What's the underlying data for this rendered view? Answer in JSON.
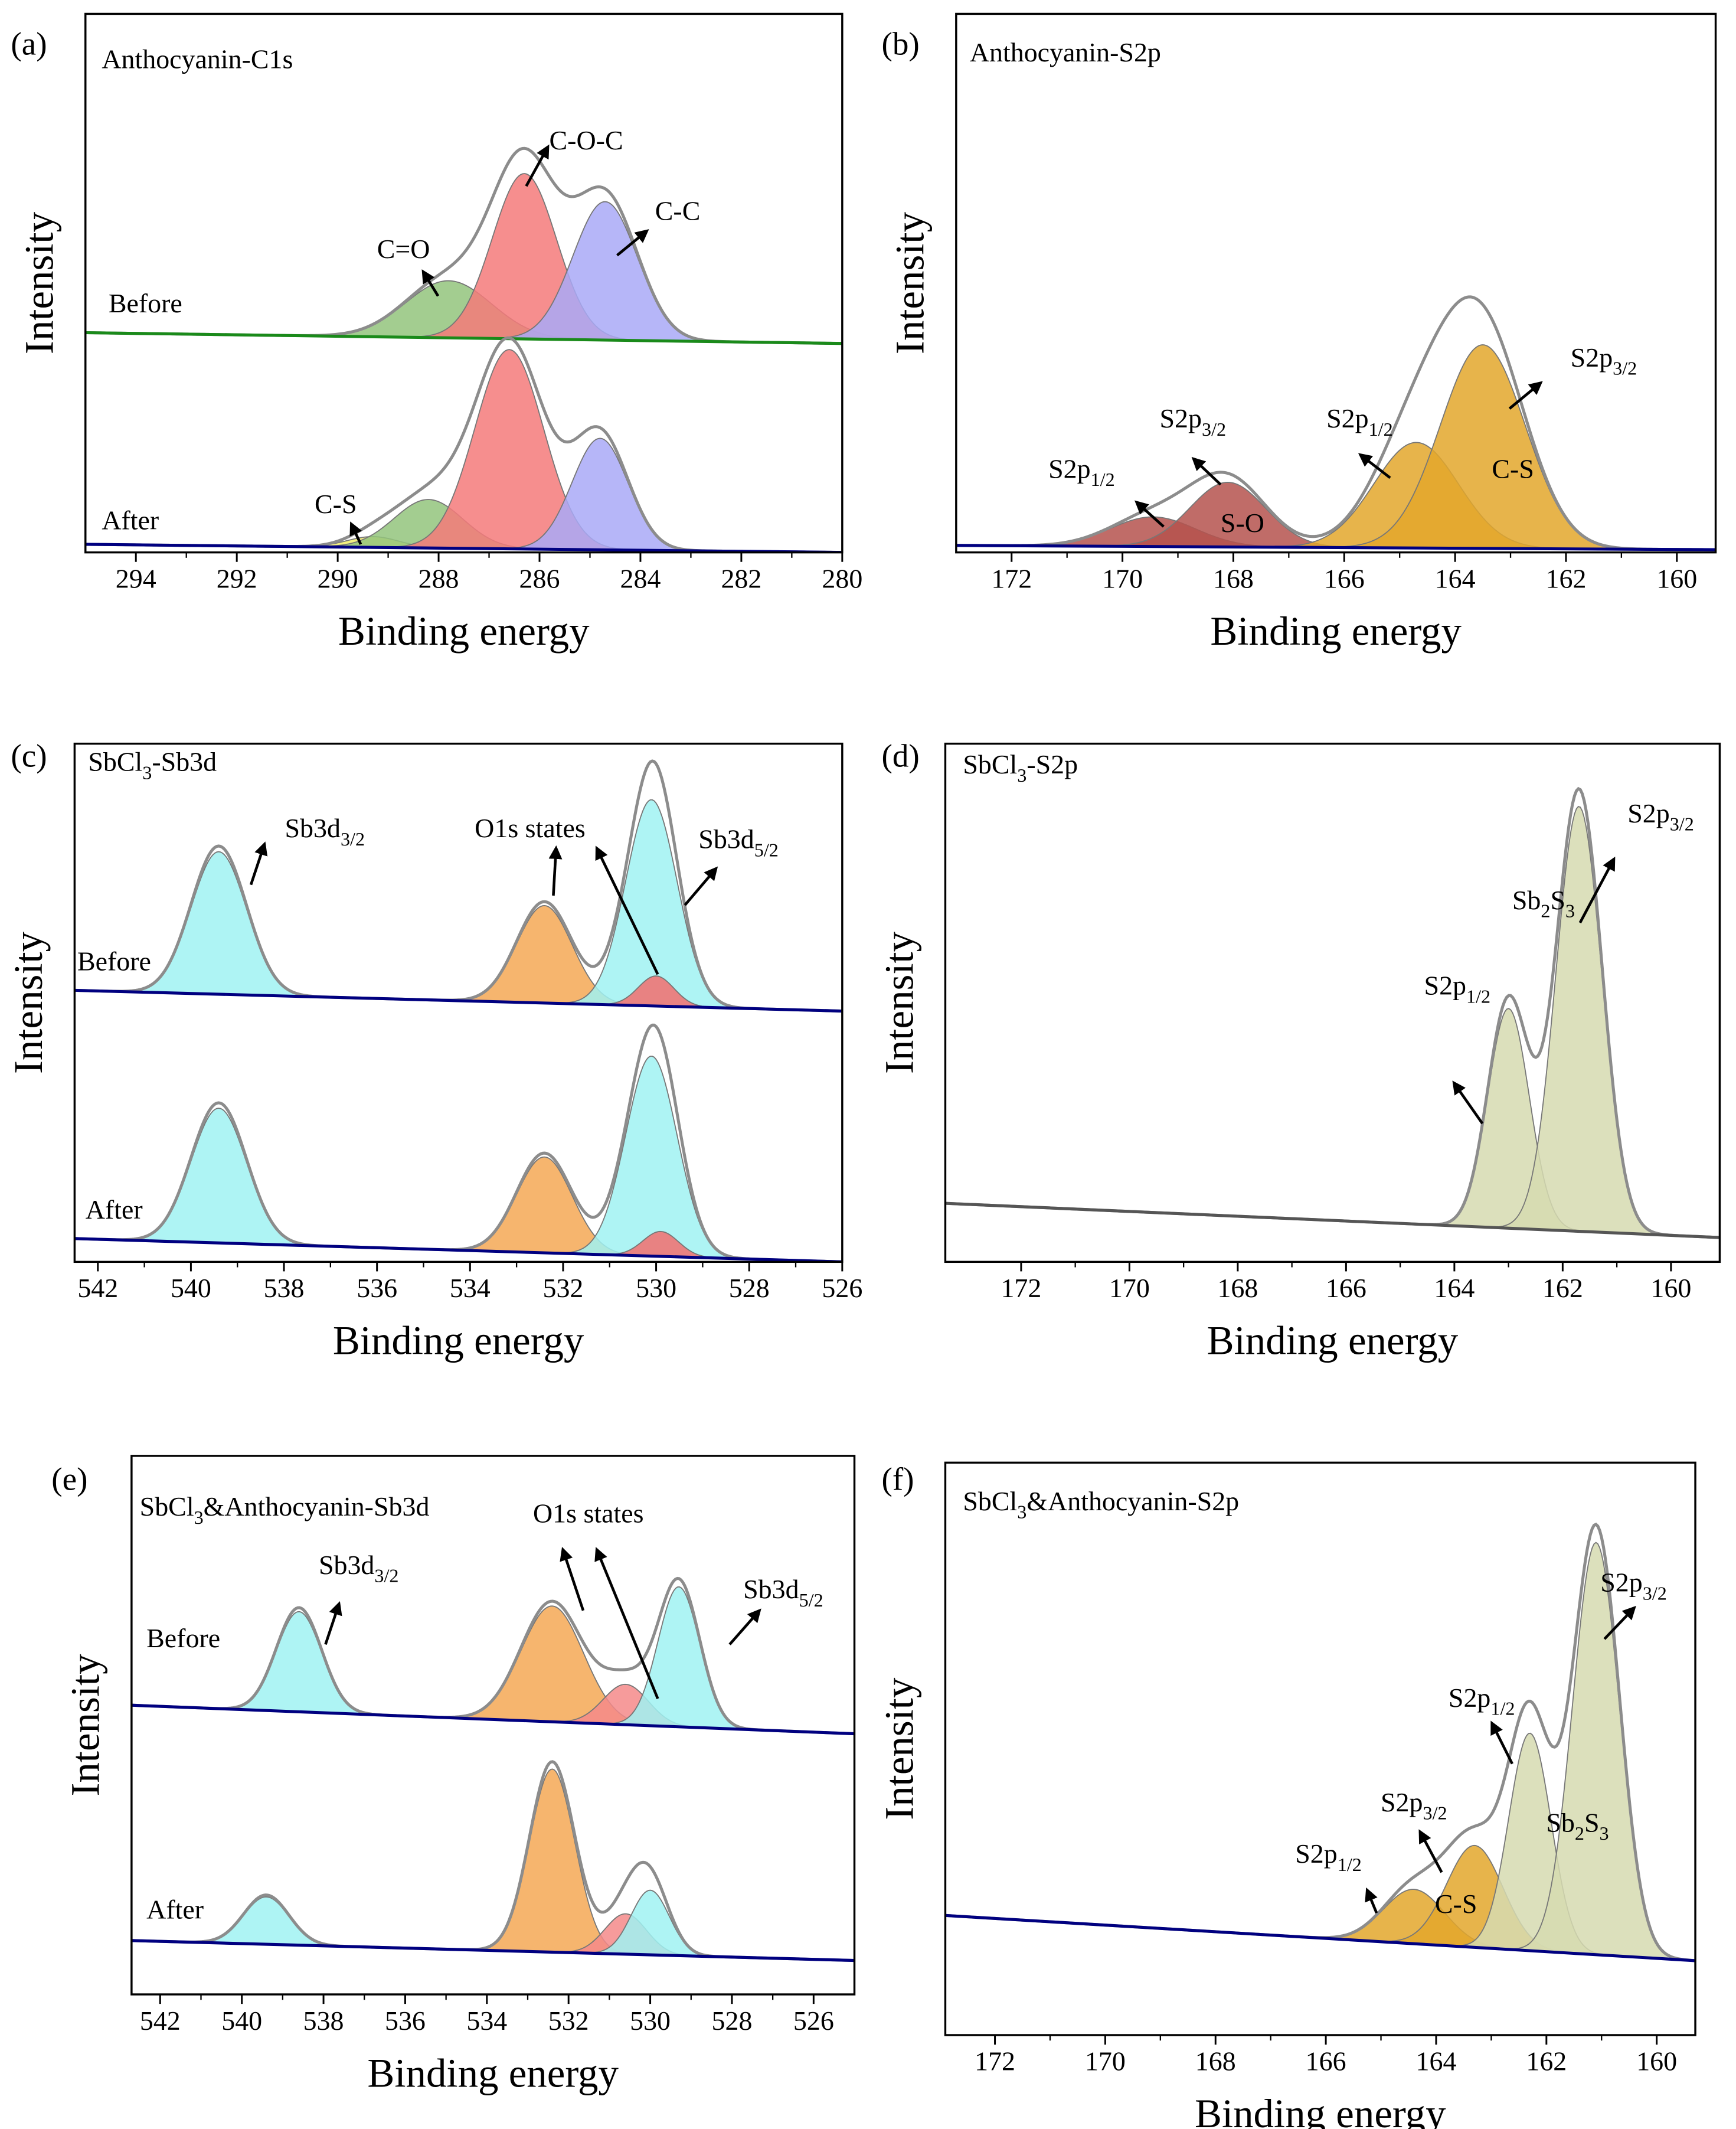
{
  "chart_data": [
    {
      "type": "area",
      "label": "(a)",
      "title": [
        "Anthocyanin-C1s"
      ],
      "xlabel": "Binding energy",
      "ylabel": "Intensity",
      "xlim": [
        295,
        280
      ],
      "xticks": [
        294,
        292,
        290,
        288,
        286,
        284,
        282,
        280
      ],
      "ylim": [
        0,
        100
      ],
      "envelope_color": "#8c8c8c",
      "groups": [
        {
          "label": "Before",
          "baseline": [
            40.8,
            38.8
          ],
          "baseline_color": "#1a8a1a",
          "peaks": [
            {
              "center": 287.8,
              "height": 10.6,
              "fwhm": 2.0,
              "color": "#93c47d"
            },
            {
              "center": 286.3,
              "height": 30.7,
              "fwhm": 1.5,
              "color": "#f47a7a"
            },
            {
              "center": 284.7,
              "height": 25.7,
              "fwhm": 1.5,
              "color": "#a9a9f7"
            }
          ]
        },
        {
          "label": "After",
          "baseline": [
            1.5,
            0
          ],
          "baseline_color": "#000080",
          "peaks": [
            {
              "center": 289.3,
              "height": 2,
              "fwhm": 1.2,
              "color": "#f2ee6a"
            },
            {
              "center": 288.2,
              "height": 9,
              "fwhm": 1.6,
              "color": "#93c47d"
            },
            {
              "center": 286.6,
              "height": 37,
              "fwhm": 1.6,
              "color": "#f47a7a"
            },
            {
              "center": 284.8,
              "height": 20.7,
              "fwhm": 1.3,
              "color": "#a9a9f7"
            }
          ]
        }
      ],
      "annotations": [
        {
          "text": [
            "C=O"
          ]
        },
        {
          "text": [
            "C-O-C"
          ]
        },
        {
          "text": [
            "C-C"
          ]
        },
        {
          "text": [
            "C-S"
          ]
        }
      ]
    },
    {
      "type": "area",
      "label": "(b)",
      "title": [
        "Anthocyanin-S2p"
      ],
      "xlabel": "Binding energy",
      "ylabel": "Intensity",
      "xlim": [
        173,
        159.3
      ],
      "xticks": [
        172,
        170,
        168,
        166,
        164,
        162,
        160
      ],
      "ylim": [
        0,
        100
      ],
      "envelope_color": "#8c8c8c",
      "groups": [
        {
          "baseline": [
            1.3,
            0.5
          ],
          "baseline_color": "#000080",
          "peaks": [
            {
              "center": 169.45,
              "height": 5.5,
              "fwhm": 1.8,
              "color": "#b5524e"
            },
            {
              "center": 168.1,
              "height": 12,
              "fwhm": 1.6,
              "color": "#b5524e"
            },
            {
              "center": 164.7,
              "height": 19.6,
              "fwhm": 1.8,
              "color": "#e3a72b"
            },
            {
              "center": 163.5,
              "height": 37.8,
              "fwhm": 1.8,
              "color": "#e3a72b"
            }
          ]
        }
      ],
      "annotations": [
        {
          "text": [
            "S2p",
            "1/2"
          ]
        },
        {
          "text": [
            "S2p",
            "3/2"
          ]
        },
        {
          "text": [
            "S-O"
          ]
        },
        {
          "text": [
            "S2p",
            "1/2"
          ]
        },
        {
          "text": [
            "C-S"
          ]
        },
        {
          "text": [
            "S2p",
            "3/2"
          ]
        }
      ]
    },
    {
      "type": "area",
      "label": "(c)",
      "title": [
        "SbCl",
        "3",
        "-Sb3d"
      ],
      "xlabel": "Binding energy",
      "ylabel": "Intensity",
      "xlim": [
        542.5,
        526
      ],
      "xticks": [
        542,
        540,
        538,
        536,
        534,
        532,
        530,
        528,
        526
      ],
      "ylim": [
        0,
        100
      ],
      "envelope_color": "#8c8c8c",
      "groups": [
        {
          "label": "Before",
          "baseline": [
            52.4,
            48.4
          ],
          "baseline_color": "#000080",
          "peaks": [
            {
              "center": 539.4,
              "height": 27.5,
              "fwhm": 1.4,
              "color": "#a0f2f2"
            },
            {
              "center": 532.4,
              "height": 18.8,
              "fwhm": 1.4,
              "color": "#f5a855"
            },
            {
              "center": 530.1,
              "height": 39.8,
              "fwhm": 1.3,
              "color": "#a0f2f2"
            },
            {
              "center": 530.0,
              "height": 5.8,
              "fwhm": 0.9,
              "color": "#f26d6d"
            }
          ]
        },
        {
          "label": "After",
          "baseline": [
            4.5,
            0
          ],
          "baseline_color": "#000080",
          "peaks": [
            {
              "center": 539.4,
              "height": 26,
              "fwhm": 1.4,
              "color": "#a0f2f2"
            },
            {
              "center": 532.4,
              "height": 18.5,
              "fwhm": 1.4,
              "color": "#f5a855"
            },
            {
              "center": 530.1,
              "height": 38.6,
              "fwhm": 1.3,
              "color": "#a0f2f2"
            },
            {
              "center": 529.9,
              "height": 4.8,
              "fwhm": 0.9,
              "color": "#f26d6d"
            }
          ]
        }
      ],
      "annotations": [
        {
          "text": [
            "Sb3d",
            "3/2"
          ]
        },
        {
          "text": [
            "O1s states"
          ]
        },
        {
          "text": [
            "Sb3d",
            "5/2"
          ]
        }
      ]
    },
    {
      "type": "area",
      "label": "(d)",
      "title": [
        "SbCl",
        "3",
        "-S2p"
      ],
      "xlabel": "Binding energy",
      "ylabel": "Intensity",
      "xlim": [
        173.4,
        159.1
      ],
      "xticks": [
        172,
        170,
        168,
        166,
        164,
        162,
        160
      ],
      "ylim": [
        0,
        100
      ],
      "envelope_color": "#8c8c8c",
      "groups": [
        {
          "baseline": [
            11.3,
            4.7
          ],
          "baseline_color": "#555555",
          "peaks": [
            {
              "center": 163.0,
              "height": 42.4,
              "fwhm": 0.9,
              "color": "#d6dab0"
            },
            {
              "center": 161.7,
              "height": 82,
              "fwhm": 1.0,
              "color": "#d6dab0"
            }
          ]
        }
      ],
      "annotations": [
        {
          "text": [
            "S2p",
            "1/2"
          ]
        },
        {
          "text": [
            "Sb",
            "2",
            "S",
            "3"
          ]
        },
        {
          "text": [
            "S2p",
            "3/2"
          ]
        }
      ]
    },
    {
      "type": "area",
      "label": "(e)",
      "title": [
        "SbCl",
        "3",
        "&Anthocyanin-Sb3d"
      ],
      "xlabel": "Binding energy",
      "ylabel": "Intensity",
      "xlim": [
        542.7,
        525
      ],
      "xticks": [
        542,
        540,
        538,
        536,
        534,
        532,
        530,
        528,
        526
      ],
      "ylim": [
        0,
        100
      ],
      "envelope_color": "#8c8c8c",
      "groups": [
        {
          "label": "Before",
          "baseline": [
            53.7,
            48.4
          ],
          "baseline_color": "#000080",
          "peaks": [
            {
              "center": 538.6,
              "height": 18.6,
              "fwhm": 1.3,
              "color": "#a0f2f2"
            },
            {
              "center": 532.4,
              "height": 21.5,
              "fwhm": 1.8,
              "color": "#f5a855"
            },
            {
              "center": 530.6,
              "height": 7.5,
              "fwhm": 1.3,
              "color": "#f58a8a"
            },
            {
              "center": 529.3,
              "height": 26,
              "fwhm": 1.2,
              "color": "#a0f2f2"
            }
          ]
        },
        {
          "label": "After",
          "baseline": [
            10,
            6.3
          ],
          "baseline_color": "#000080",
          "peaks": [
            {
              "center": 539.4,
              "height": 8.8,
              "fwhm": 1.3,
              "color": "#a0f2f2"
            },
            {
              "center": 532.4,
              "height": 34,
              "fwhm": 1.3,
              "color": "#f5a855"
            },
            {
              "center": 530.6,
              "height": 7.5,
              "fwhm": 1.2,
              "color": "#f58a8a"
            },
            {
              "center": 530.0,
              "height": 12,
              "fwhm": 1.1,
              "color": "#a0f2f2"
            }
          ]
        }
      ],
      "annotations": [
        {
          "text": [
            "Sb3d",
            "3/2"
          ]
        },
        {
          "text": [
            "O1s states"
          ]
        },
        {
          "text": [
            "Sb3d",
            "5/2"
          ]
        }
      ]
    },
    {
      "type": "area",
      "label": "(f)",
      "title": [
        "SbCl",
        "3",
        "&Anthocyanin-S2p"
      ],
      "xlabel": "Binding energy",
      "ylabel": "Intensity",
      "xlim": [
        172.9,
        159.3
      ],
      "xticks": [
        172,
        170,
        168,
        166,
        164,
        162,
        160
      ],
      "ylim": [
        0,
        100
      ],
      "envelope_color": "#8c8c8c",
      "groups": [
        {
          "baseline": [
            20.9,
            13.0
          ],
          "baseline_color": "#000080",
          "peaks": [
            {
              "center": 164.4,
              "height": 9.5,
              "fwhm": 1.3,
              "color": "#e3a72b"
            },
            {
              "center": 163.3,
              "height": 17.8,
              "fwhm": 1.2,
              "color": "#e3a72b"
            },
            {
              "center": 162.3,
              "height": 38,
              "fwhm": 0.9,
              "color": "#d6dab0"
            },
            {
              "center": 161.1,
              "height": 72,
              "fwhm": 1.0,
              "color": "#d6dab0"
            }
          ]
        }
      ],
      "annotations": [
        {
          "text": [
            "S2p",
            "1/2"
          ]
        },
        {
          "text": [
            "C-S"
          ]
        },
        {
          "text": [
            "S2p",
            "3/2"
          ]
        },
        {
          "text": [
            "S2p",
            "1/2"
          ]
        },
        {
          "text": [
            "Sb",
            "2",
            "S",
            "3"
          ]
        },
        {
          "text": [
            "S2p",
            "3/2"
          ]
        }
      ]
    }
  ]
}
